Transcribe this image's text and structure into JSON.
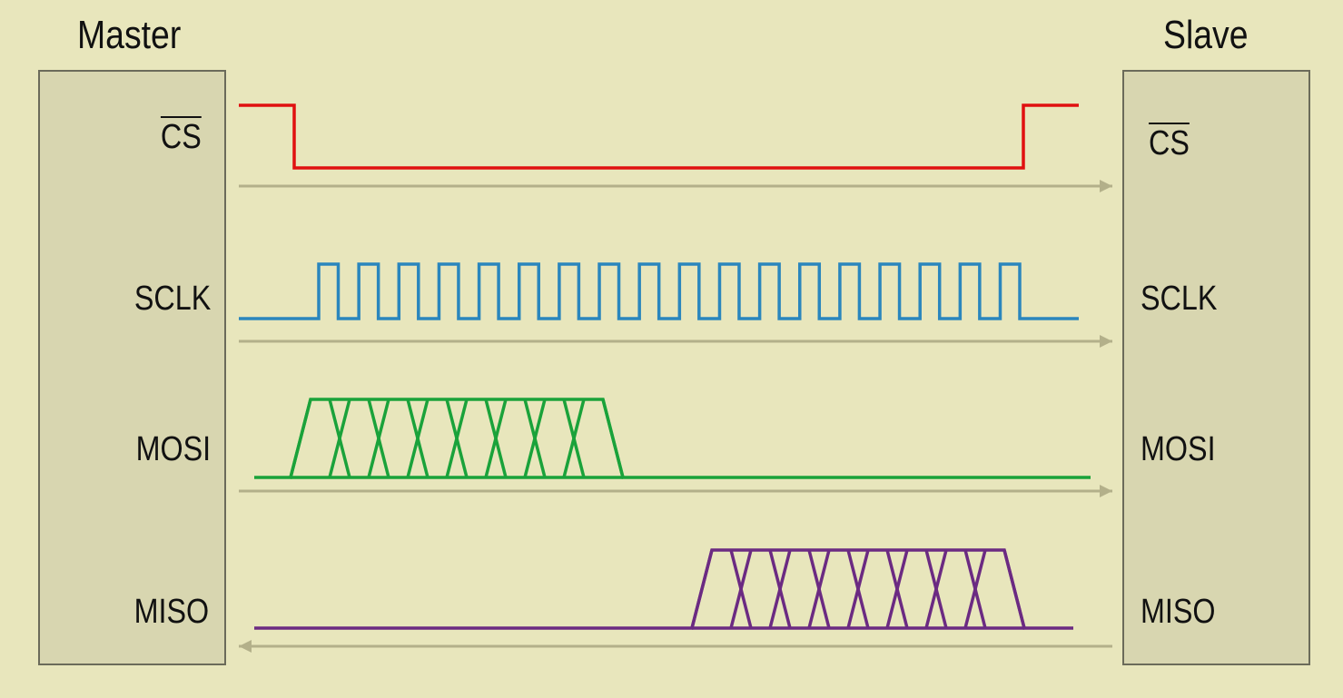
{
  "master": {
    "title": "Master"
  },
  "slave": {
    "title": "Slave"
  },
  "signals": [
    {
      "key": "cs",
      "label": "CS",
      "active_low": true,
      "direction": "master-to-slave",
      "color": "#e01010"
    },
    {
      "key": "sclk",
      "label": "SCLK",
      "direction": "master-to-slave",
      "color": "#2a86bd",
      "clock_pulses": 18
    },
    {
      "key": "mosi",
      "label": "MOSI",
      "direction": "master-to-slave",
      "color": "#1aa23a",
      "bits": 8
    },
    {
      "key": "miso",
      "label": "MISO",
      "direction": "slave-to-master",
      "color": "#6b2a82",
      "bits": 8
    }
  ],
  "arrow_color": "#b3b08a"
}
